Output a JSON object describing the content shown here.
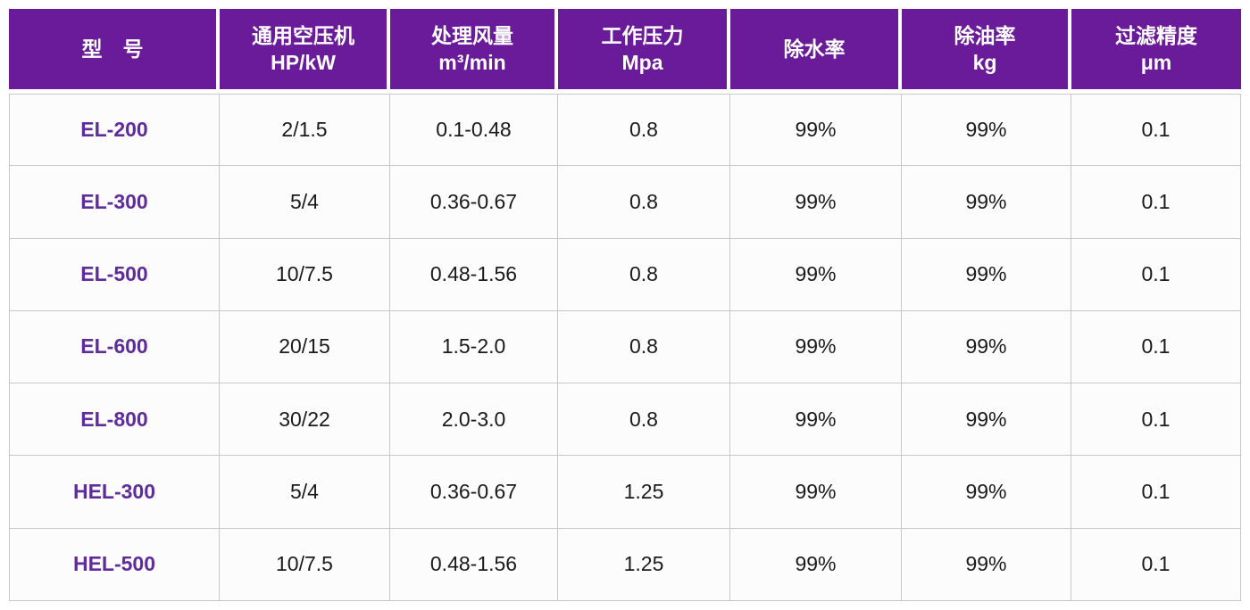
{
  "chart_data": {
    "type": "table",
    "columns": [
      {
        "title": "型　号",
        "subtitle": ""
      },
      {
        "title": "通用空压机",
        "subtitle": "HP/kW"
      },
      {
        "title": "处理风量",
        "subtitle": "m³/min"
      },
      {
        "title": "工作压力",
        "subtitle": "Mpa"
      },
      {
        "title": "除水率",
        "subtitle": ""
      },
      {
        "title": "除油率",
        "subtitle": "kg"
      },
      {
        "title": "过滤精度",
        "subtitle": "μm"
      }
    ],
    "rows": [
      {
        "model": "EL-200",
        "values": [
          "2/1.5",
          "0.1-0.48",
          "0.8",
          "99%",
          "99%",
          "0.1"
        ]
      },
      {
        "model": "EL-300",
        "values": [
          "5/4",
          "0.36-0.67",
          "0.8",
          "99%",
          "99%",
          "0.1"
        ]
      },
      {
        "model": "EL-500",
        "values": [
          "10/7.5",
          "0.48-1.56",
          "0.8",
          "99%",
          "99%",
          "0.1"
        ]
      },
      {
        "model": "EL-600",
        "values": [
          "20/15",
          "1.5-2.0",
          "0.8",
          "99%",
          "99%",
          "0.1"
        ]
      },
      {
        "model": "EL-800",
        "values": [
          "30/22",
          "2.0-3.0",
          "0.8",
          "99%",
          "99%",
          "0.1"
        ]
      },
      {
        "model": "HEL-300",
        "values": [
          "5/4",
          "0.36-0.67",
          "1.25",
          "99%",
          "99%",
          "0.1"
        ]
      },
      {
        "model": "HEL-500",
        "values": [
          "10/7.5",
          "0.48-1.56",
          "1.25",
          "99%",
          "99%",
          "0.1"
        ]
      }
    ]
  },
  "colors": {
    "header_bg": "#691B99",
    "header_text": "#FFFFFF",
    "model_text": "#5F2C9B",
    "body_text": "#1A1A1A",
    "grid_line": "#C8C8C8"
  }
}
